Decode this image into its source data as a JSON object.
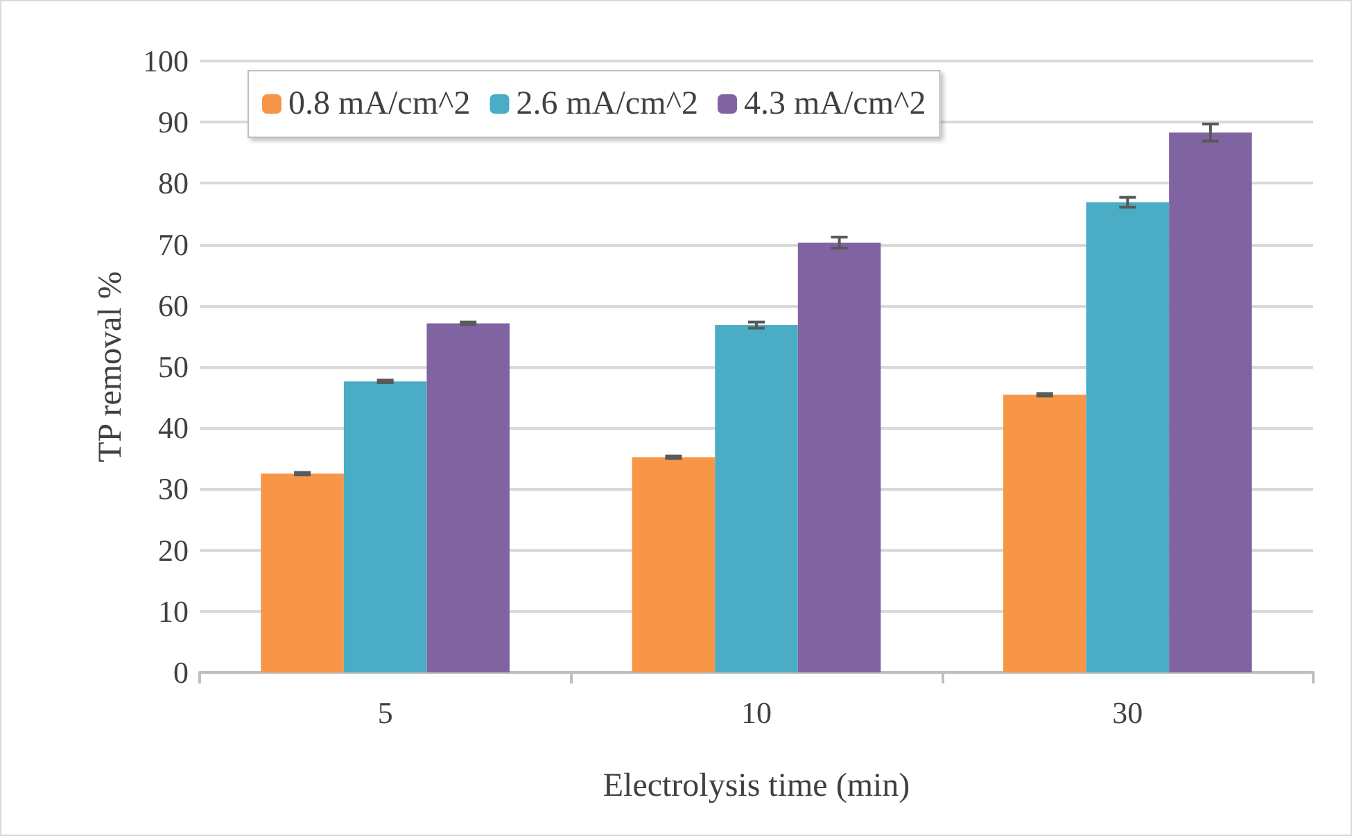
{
  "chart_data": {
    "type": "bar",
    "xlabel": "Electrolysis time (min)",
    "ylabel": "TP removal %",
    "categories": [
      "5",
      "10",
      "30"
    ],
    "series": [
      {
        "name": "0.8 mA/cm^2",
        "color": "#f79646",
        "values": [
          32.5,
          35.2,
          45.4
        ],
        "errors": [
          0.2,
          0.2,
          0.2
        ]
      },
      {
        "name": "2.6 mA/cm^2",
        "color": "#4bacc6",
        "values": [
          47.6,
          56.8,
          76.9
        ],
        "errors": [
          0.2,
          0.5,
          0.8
        ]
      },
      {
        "name": "4.3 mA/cm^2",
        "color": "#8064a2",
        "values": [
          57.1,
          70.3,
          88.3
        ],
        "errors": [
          0.2,
          0.9,
          1.4
        ]
      }
    ],
    "ylim": [
      0,
      100
    ],
    "yticks": [
      0,
      10,
      20,
      30,
      40,
      50,
      60,
      70,
      80,
      90,
      100
    ],
    "grid": "y",
    "legend": "top"
  }
}
